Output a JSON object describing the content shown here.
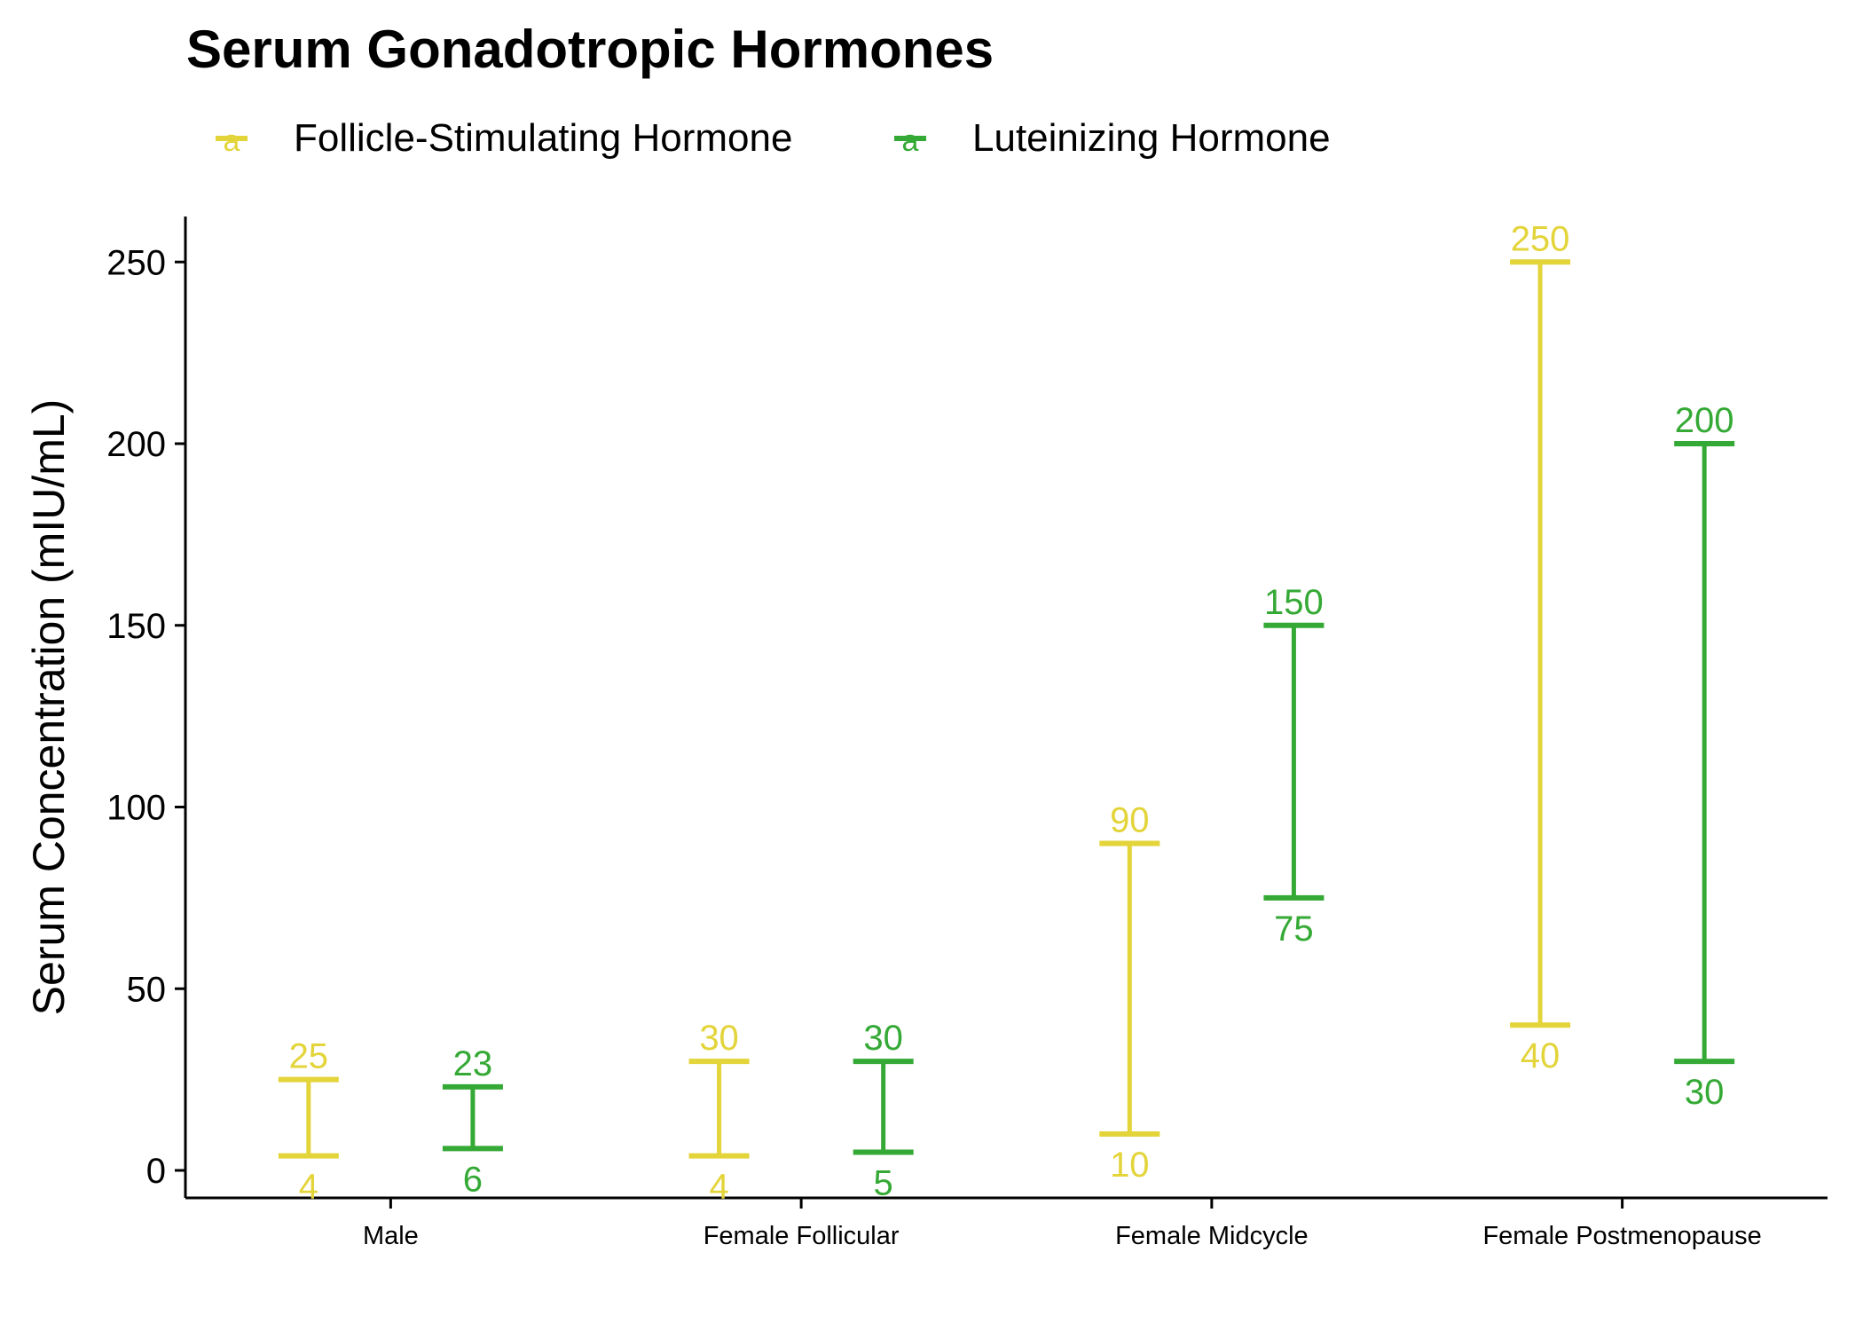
{
  "chart_data": {
    "type": "range",
    "title": "Serum Gonadotropic Hormones",
    "xlabel": "",
    "ylabel": "Serum Concentration (mIU/mL)",
    "categories": [
      "Male",
      "Female Follicular",
      "Female Midcycle",
      "Female Postmenopause"
    ],
    "y_ticks": [
      0,
      50,
      100,
      150,
      200,
      250
    ],
    "ylim": [
      -8,
      262
    ],
    "grid": false,
    "legend_position": "top",
    "legend_symbol": "a",
    "series": [
      {
        "name": "Follicle-Stimulating Hormone",
        "color": "#E3D43A",
        "low": [
          4,
          4,
          10,
          40
        ],
        "high": [
          25,
          30,
          90,
          250
        ]
      },
      {
        "name": "Luteinizing Hormone",
        "color": "#35A935",
        "low": [
          6,
          5,
          75,
          30
        ],
        "high": [
          23,
          30,
          150,
          200
        ]
      }
    ]
  }
}
